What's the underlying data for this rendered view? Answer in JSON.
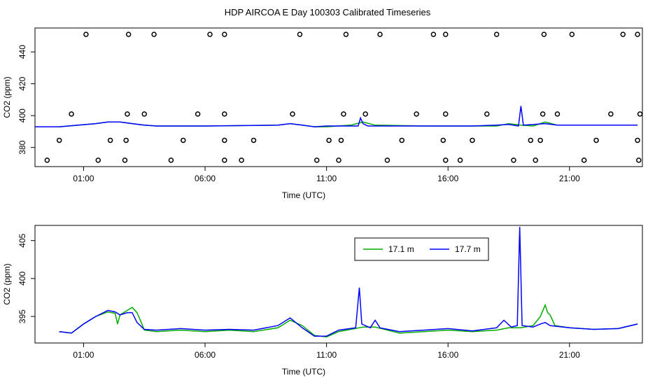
{
  "title": "HDP AIRCOA E  Day 100303  Calibrated Timeseries",
  "chart_data": [
    {
      "type": "scatter",
      "xlabel": "Time (UTC)",
      "ylabel": "CO2 (ppm)",
      "x_ticks": [
        "01:00",
        "06:00",
        "11:00",
        "16:00",
        "21:00"
      ],
      "x_tick_hours": [
        1,
        6,
        11,
        16,
        21
      ],
      "xlim_hours": [
        -1.0,
        24.0
      ],
      "y_ticks": [
        380,
        400,
        420,
        440
      ],
      "ylim": [
        368,
        455
      ],
      "series": [
        {
          "color": "#00aa00",
          "points": [
            [
              0,
              393
            ],
            [
              1.5,
              395
            ],
            [
              2,
              396
            ],
            [
              2.5,
              396
            ],
            [
              3,
              395
            ],
            [
              3.5,
              394
            ],
            [
              4,
              393.5
            ],
            [
              6,
              393.5
            ],
            [
              9,
              394
            ],
            [
              9.5,
              395
            ],
            [
              10,
              394
            ],
            [
              10.5,
              393
            ],
            [
              11,
              393
            ],
            [
              12,
              394
            ],
            [
              12.5,
              396
            ],
            [
              13,
              394
            ],
            [
              15,
              393.5
            ],
            [
              18,
              393.5
            ],
            [
              18.5,
              395
            ],
            [
              19,
              394
            ],
            [
              19.5,
              393.5
            ],
            [
              20,
              396
            ],
            [
              20.5,
              394
            ],
            [
              23,
              394
            ],
            [
              23.8,
              394
            ]
          ]
        },
        {
          "color": "#0000ff",
          "points": [
            [
              -1,
              393
            ],
            [
              0,
              393
            ],
            [
              1.5,
              395
            ],
            [
              2,
              396
            ],
            [
              2.5,
              396
            ],
            [
              3,
              395
            ],
            [
              3.5,
              394
            ],
            [
              4,
              393.5
            ],
            [
              6,
              393.5
            ],
            [
              9,
              394
            ],
            [
              9.5,
              395
            ],
            [
              10,
              394
            ],
            [
              10.5,
              393
            ],
            [
              11,
              393.5
            ],
            [
              12.3,
              393.5
            ],
            [
              12.4,
              398.5
            ],
            [
              12.5,
              395
            ],
            [
              12.7,
              393.5
            ],
            [
              17,
              393.5
            ],
            [
              18,
              394
            ],
            [
              18.5,
              394.5
            ],
            [
              18.9,
              393.5
            ],
            [
              19,
              406
            ],
            [
              19.1,
              394
            ],
            [
              20,
              395
            ],
            [
              20.5,
              394
            ],
            [
              23,
              394
            ],
            [
              23.8,
              394
            ]
          ]
        }
      ],
      "markers": [
        [
          -0.5,
          372
        ],
        [
          0,
          384.5
        ],
        [
          0.5,
          401
        ],
        [
          1.1,
          451
        ],
        [
          1.6,
          372
        ],
        [
          2.1,
          384.5
        ],
        [
          2.7,
          372
        ],
        [
          2.75,
          384.5
        ],
        [
          2.8,
          401
        ],
        [
          2.85,
          451
        ],
        [
          3.5,
          401
        ],
        [
          3.9,
          451
        ],
        [
          4.6,
          372
        ],
        [
          5.1,
          384.5
        ],
        [
          5.7,
          401
        ],
        [
          6.2,
          451
        ],
        [
          6.8,
          372
        ],
        [
          6.8,
          384.5
        ],
        [
          6.8,
          401
        ],
        [
          6.8,
          451
        ],
        [
          7.5,
          372
        ],
        [
          8.0,
          384.5
        ],
        [
          9.6,
          401
        ],
        [
          9.9,
          451
        ],
        [
          10.6,
          372
        ],
        [
          11.1,
          384.5
        ],
        [
          11.5,
          372
        ],
        [
          11.6,
          384.5
        ],
        [
          11.7,
          401
        ],
        [
          11.8,
          451
        ],
        [
          12.6,
          401
        ],
        [
          13.2,
          451
        ],
        [
          13.5,
          372
        ],
        [
          14.1,
          384.5
        ],
        [
          14.7,
          401
        ],
        [
          15.4,
          451
        ],
        [
          15.8,
          384.5
        ],
        [
          15.9,
          372
        ],
        [
          15.9,
          401
        ],
        [
          15.9,
          451
        ],
        [
          16.5,
          372
        ],
        [
          17.0,
          384.5
        ],
        [
          17.6,
          401
        ],
        [
          18.0,
          451
        ],
        [
          18.7,
          372
        ],
        [
          19.4,
          384.5
        ],
        [
          19.6,
          372
        ],
        [
          19.8,
          384.5
        ],
        [
          19.9,
          401
        ],
        [
          19.95,
          451
        ],
        [
          20.5,
          401
        ],
        [
          21.1,
          451
        ],
        [
          21.6,
          372
        ],
        [
          22.1,
          384.5
        ],
        [
          22.7,
          401
        ],
        [
          23.2,
          451
        ],
        [
          23.8,
          451
        ],
        [
          23.8,
          384.5
        ],
        [
          23.85,
          372
        ],
        [
          23.9,
          401
        ]
      ]
    },
    {
      "type": "line",
      "xlabel": "Time (UTC)",
      "ylabel": "CO2 (ppm)",
      "x_ticks": [
        "01:00",
        "06:00",
        "11:00",
        "16:00",
        "21:00"
      ],
      "x_tick_hours": [
        1,
        6,
        11,
        16,
        21
      ],
      "xlim_hours": [
        -1.0,
        24.0
      ],
      "y_ticks": [
        395,
        400,
        405
      ],
      "ylim": [
        391.5,
        407.0
      ],
      "legend": {
        "placement": "top-right"
      },
      "series": [
        {
          "name": "17.1 m",
          "color": "#00aa00",
          "points": [
            [
              0,
              393
            ],
            [
              0.5,
              392.8
            ],
            [
              1,
              394
            ],
            [
              1.5,
              395
            ],
            [
              2,
              395.6
            ],
            [
              2.3,
              395.4
            ],
            [
              2.4,
              394
            ],
            [
              2.5,
              395.2
            ],
            [
              2.8,
              395.8
            ],
            [
              3.0,
              396.2
            ],
            [
              3.2,
              395.5
            ],
            [
              3.4,
              394
            ],
            [
              3.5,
              393.2
            ],
            [
              4,
              393
            ],
            [
              5,
              393.2
            ],
            [
              6,
              393
            ],
            [
              7,
              393.2
            ],
            [
              8,
              393
            ],
            [
              9,
              393.5
            ],
            [
              9.5,
              394.5
            ],
            [
              10,
              393.8
            ],
            [
              10.5,
              392.5
            ],
            [
              11,
              392.3
            ],
            [
              11.5,
              393
            ],
            [
              12,
              393.3
            ],
            [
              12.5,
              393.6
            ],
            [
              13,
              393.6
            ],
            [
              14,
              392.8
            ],
            [
              15,
              393
            ],
            [
              16,
              393.2
            ],
            [
              17,
              393
            ],
            [
              18,
              393.2
            ],
            [
              18.5,
              393.5
            ],
            [
              19,
              393.5
            ],
            [
              19.5,
              393.8
            ],
            [
              19.8,
              395
            ],
            [
              20.0,
              396.5
            ],
            [
              20.1,
              395.5
            ],
            [
              20.2,
              395.2
            ],
            [
              20.4,
              393.8
            ],
            [
              21,
              393.5
            ],
            [
              22,
              393.3
            ],
            [
              23,
              393.4
            ],
            [
              23.8,
              394
            ]
          ]
        },
        {
          "name": "17.7 m",
          "color": "#0000ff",
          "points": [
            [
              0,
              393
            ],
            [
              0.5,
              392.8
            ],
            [
              1,
              394
            ],
            [
              1.5,
              395
            ],
            [
              2,
              395.8
            ],
            [
              2.3,
              395.6
            ],
            [
              2.5,
              395.2
            ],
            [
              2.8,
              395.5
            ],
            [
              3.0,
              395.5
            ],
            [
              3.2,
              394.2
            ],
            [
              3.5,
              393.3
            ],
            [
              4,
              393.2
            ],
            [
              5,
              393.4
            ],
            [
              6,
              393.2
            ],
            [
              7,
              393.3
            ],
            [
              8,
              393.2
            ],
            [
              9,
              393.8
            ],
            [
              9.5,
              394.8
            ],
            [
              10,
              393.5
            ],
            [
              10.5,
              392.4
            ],
            [
              11,
              392.4
            ],
            [
              11.5,
              393.2
            ],
            [
              12.2,
              393.5
            ],
            [
              12.35,
              398.8
            ],
            [
              12.45,
              394
            ],
            [
              12.8,
              393.5
            ],
            [
              13,
              394.5
            ],
            [
              13.2,
              393.5
            ],
            [
              14,
              393
            ],
            [
              15,
              393.2
            ],
            [
              16,
              393.4
            ],
            [
              17,
              393.1
            ],
            [
              18,
              393.5
            ],
            [
              18.3,
              394.5
            ],
            [
              18.6,
              393.6
            ],
            [
              18.85,
              393.8
            ],
            [
              18.95,
              406.8
            ],
            [
              19.05,
              393.8
            ],
            [
              19.5,
              393.6
            ],
            [
              19.8,
              394
            ],
            [
              20.0,
              394.2
            ],
            [
              20.2,
              393.8
            ],
            [
              21,
              393.5
            ],
            [
              22,
              393.3
            ],
            [
              23,
              393.4
            ],
            [
              23.8,
              394
            ]
          ]
        }
      ]
    }
  ]
}
